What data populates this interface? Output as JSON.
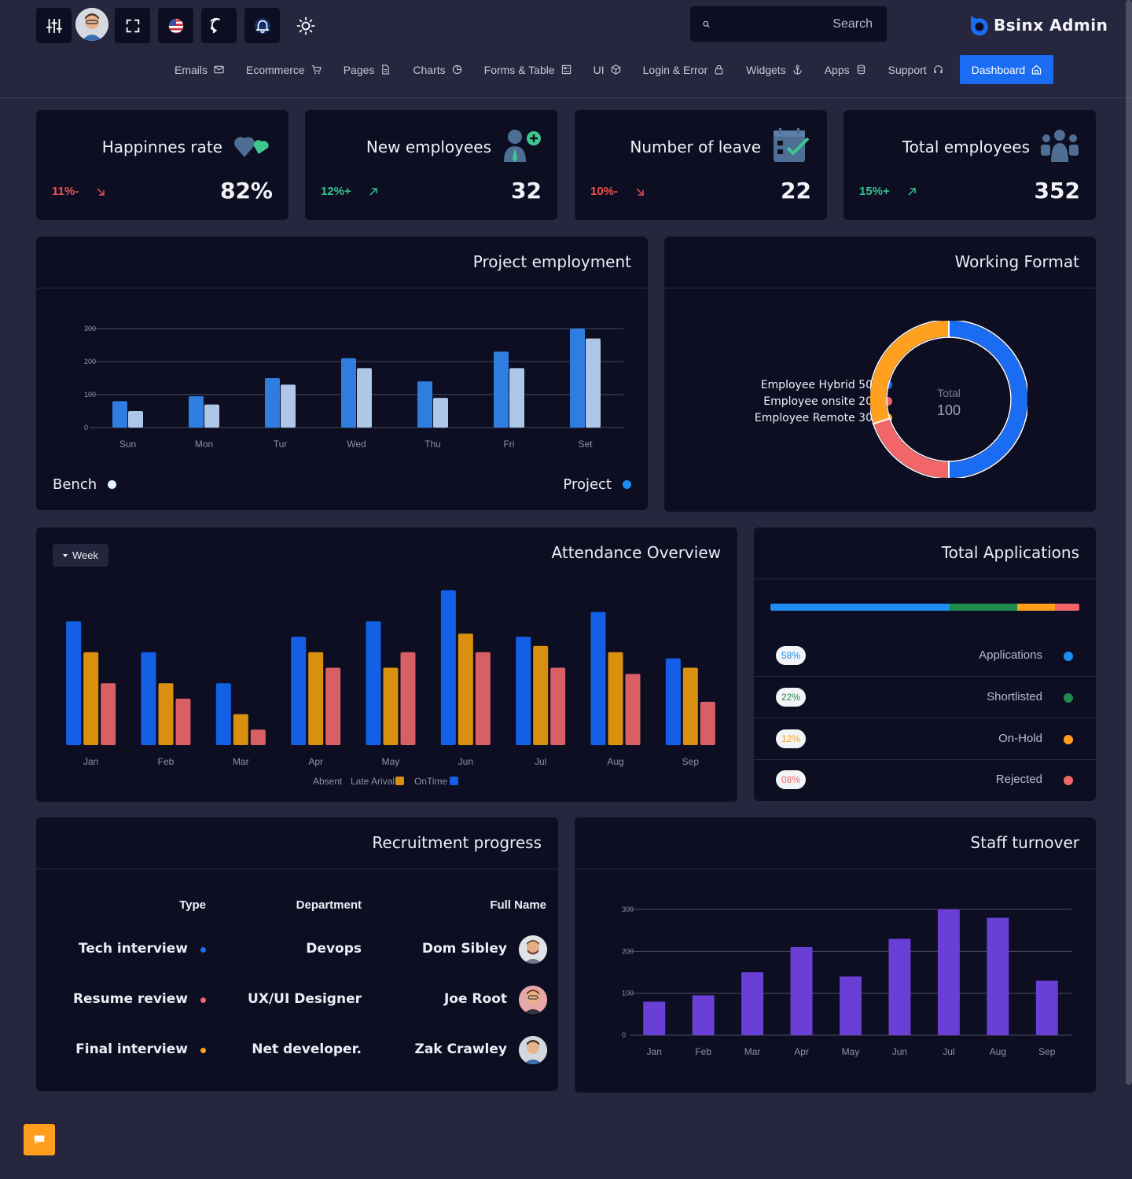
{
  "app": {
    "brand": "Bsinx Admin",
    "search_placeholder": "Search"
  },
  "topbar": {
    "buttons": [
      "settings-sliders-icon",
      "avatar",
      "fullscreen-icon",
      "us-flag-icon",
      "chat-bubble-icon",
      "bell-icon",
      "sun-icon"
    ]
  },
  "nav": {
    "items": [
      {
        "label": "Emails",
        "icon": "mail-icon"
      },
      {
        "label": "Ecommerce",
        "icon": "cart-icon"
      },
      {
        "label": "Pages",
        "icon": "file-icon"
      },
      {
        "label": "Charts",
        "icon": "pie-icon"
      },
      {
        "label": "Forms & Table",
        "icon": "table-icon"
      },
      {
        "label": "UI",
        "icon": "cube-icon"
      },
      {
        "label": "Login & Error",
        "icon": "lock-icon"
      },
      {
        "label": "Widgets",
        "icon": "anchor-icon"
      },
      {
        "label": "Apps",
        "icon": "database-icon"
      },
      {
        "label": "Support",
        "icon": "headset-icon"
      },
      {
        "label": "Dashboard",
        "icon": "home-icon",
        "active": true
      }
    ]
  },
  "stats": [
    {
      "title": "Happinnes rate",
      "value": "82%",
      "change": "11%-",
      "trend": "down",
      "icon": "hearts-icon"
    },
    {
      "title": "New employees",
      "value": "32",
      "change": "12%+",
      "trend": "up",
      "icon": "add-user-icon"
    },
    {
      "title": "Number of leave",
      "value": "22",
      "change": "10%-",
      "trend": "down",
      "icon": "calendar-check-icon"
    },
    {
      "title": "Total employees",
      "value": "352",
      "change": "15%+",
      "trend": "up",
      "icon": "users-group-icon"
    }
  ],
  "project_employment": {
    "title": "Project employment",
    "legend_bench": "Bench",
    "legend_project": "Project"
  },
  "working_format": {
    "title": "Working Format",
    "center_label": "Total",
    "center_value": "100",
    "legend": [
      {
        "label": "Employee Hybrid 50",
        "color": "#1a6cf3"
      },
      {
        "label": "Employee onsite 20",
        "color": "#f2666a"
      },
      {
        "label": "Employee Remote 30",
        "color": "#ffa11f"
      }
    ]
  },
  "attendance": {
    "title": "Attendance Overview",
    "period_button": "Week",
    "legend": {
      "absent": "Absent",
      "late": "Late Arival",
      "ontime": "OnTime"
    }
  },
  "applications": {
    "title": "Total Applications",
    "rows": [
      {
        "percent": "58%",
        "label": "Applications",
        "color": "#1f8ef1",
        "text_color": "#1f8ef1"
      },
      {
        "percent": "22%",
        "label": "Shortlisted",
        "color": "#1e8a4c",
        "text_color": "#1e8a4c"
      },
      {
        "percent": "12%",
        "label": "On-Hold",
        "color": "#ff9f1c",
        "text_color": "#ff9f1c"
      },
      {
        "percent": "08%",
        "label": "Rejected",
        "color": "#f2666a",
        "text_color": "#f2666a"
      }
    ]
  },
  "recruitment": {
    "title": "Recruitment progress",
    "headers": {
      "type": "Type",
      "department": "Department",
      "name": "Full Name"
    },
    "rows": [
      {
        "type": "Tech interview",
        "dot": "#1a6cf3",
        "department": "Devops",
        "name": "Dom Sibley"
      },
      {
        "type": "Resume review",
        "dot": "#f2666a",
        "department": "UX/UI Designer",
        "name": "Joe Root"
      },
      {
        "type": "Final interview",
        "dot": "#ff9f1c",
        "department": "Net developer.",
        "name": "Zak Crawley"
      }
    ]
  },
  "staff_turnover": {
    "title": "Staff turnover"
  },
  "chart_data": [
    {
      "type": "bar",
      "categories": [
        "Sun",
        "Mon",
        "Tur",
        "Wed",
        "Thu",
        "Fri",
        "Set"
      ],
      "series": [
        {
          "name": "Project",
          "color": "#2f7de0",
          "values": [
            80,
            95,
            150,
            210,
            140,
            230,
            300
          ]
        },
        {
          "name": "Bench",
          "color": "#aec6e8",
          "values": [
            50,
            70,
            130,
            180,
            90,
            180,
            270
          ]
        }
      ],
      "ylim": [
        0,
        300
      ],
      "yticks": [
        0,
        100,
        200,
        300
      ],
      "grid": true
    },
    {
      "type": "pie",
      "labels": [
        "Employee Hybrid",
        "Employee onsite",
        "Employee Remote"
      ],
      "values": [
        50,
        20,
        30
      ],
      "colors": [
        "#1a6cf3",
        "#f2666a",
        "#ffa11f"
      ]
    },
    {
      "type": "bar",
      "categories": [
        "Jan",
        "Feb",
        "Mar",
        "Apr",
        "May",
        "Jun",
        "Jul",
        "Aug",
        "Sep"
      ],
      "series": [
        {
          "name": "OnTime",
          "color": "#1360e6",
          "values": [
            80,
            60,
            40,
            70,
            80,
            100,
            70,
            86,
            56
          ]
        },
        {
          "name": "Late Arival",
          "color": "#d8900e",
          "values": [
            60,
            40,
            20,
            60,
            50,
            72,
            64,
            60,
            50
          ]
        },
        {
          "name": "Absent",
          "color": "#d85f64",
          "values": [
            40,
            30,
            10,
            50,
            60,
            60,
            50,
            46,
            28
          ]
        }
      ],
      "ylim": [
        0,
        100
      ],
      "grid": false
    },
    {
      "type": "bar",
      "categories": [
        "Jan",
        "Feb",
        "Mar",
        "Apr",
        "May",
        "Jun",
        "Jul",
        "Aug",
        "Sep"
      ],
      "series": [
        {
          "name": "",
          "color": "#6a3fd6",
          "values": [
            80,
            95,
            150,
            210,
            140,
            230,
            300,
            280,
            130
          ]
        }
      ],
      "ylim": [
        0,
        300
      ],
      "yticks": [
        0,
        100,
        200,
        300
      ],
      "grid": true
    }
  ]
}
